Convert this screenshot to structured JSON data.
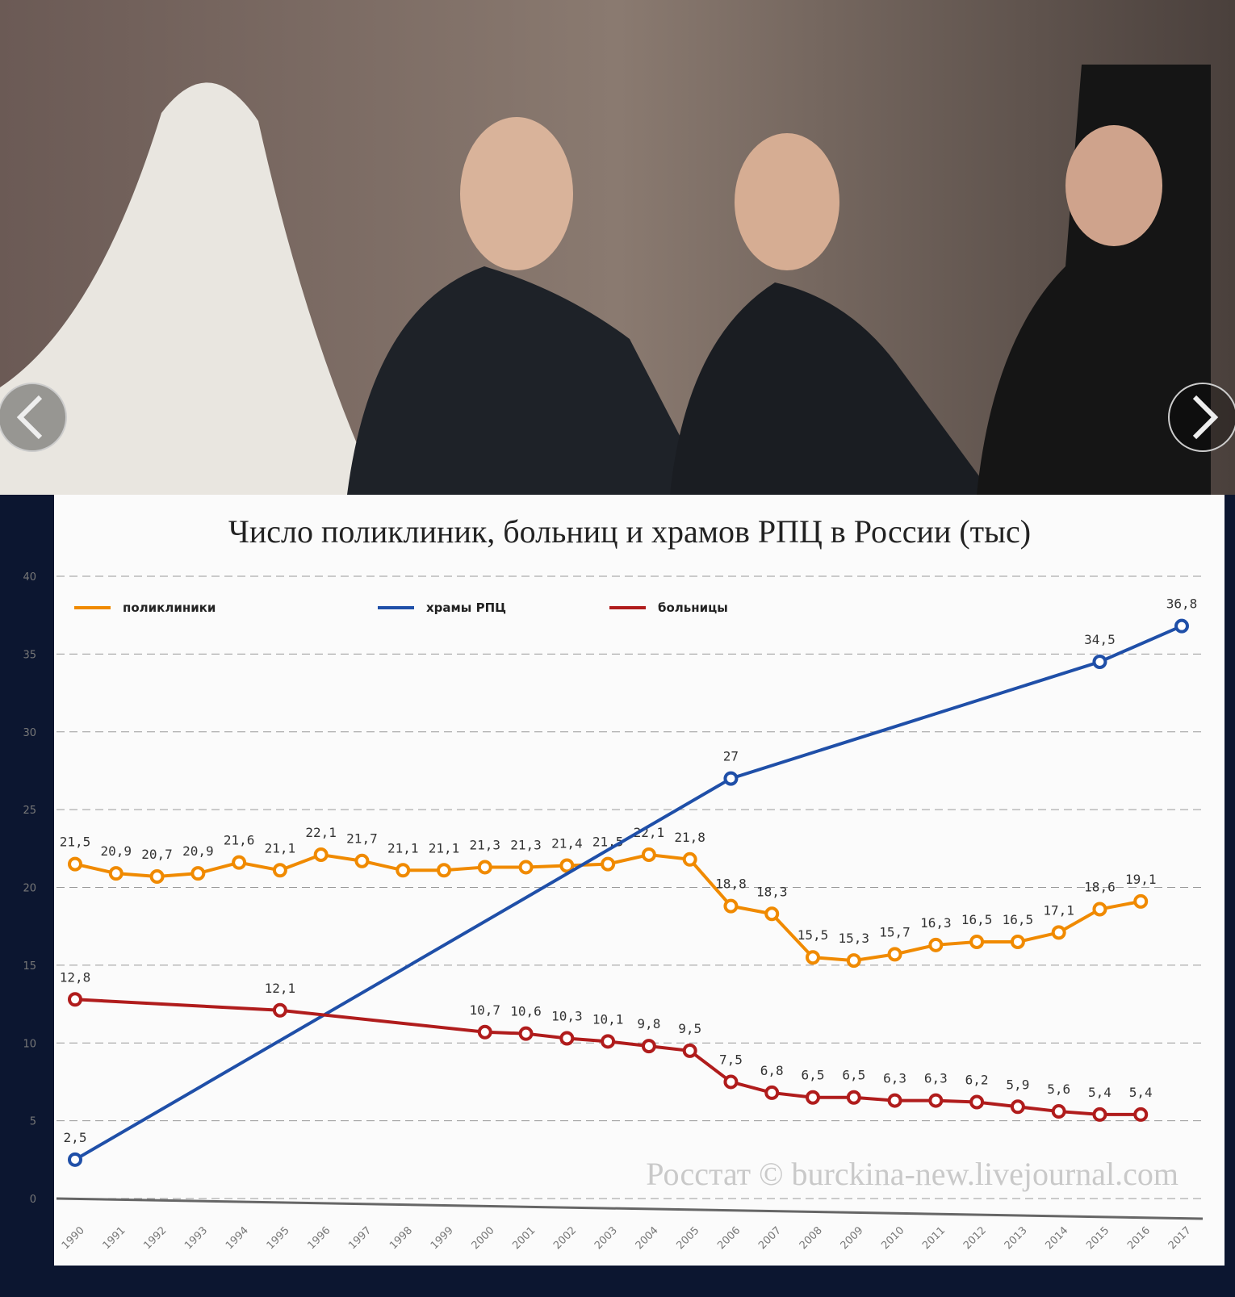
{
  "chart_data": {
    "type": "line",
    "title": "Число поликлиник, больниц и храмов РПЦ в России (тыс)",
    "source": "Росстат © burckina-new.livejournal.com",
    "xlim": [
      1990,
      2017
    ],
    "xticks": [
      1990,
      1991,
      1992,
      1993,
      1994,
      1995,
      1996,
      1997,
      1998,
      1999,
      2000,
      2001,
      2002,
      2003,
      2004,
      2005,
      2006,
      2007,
      2008,
      2009,
      2010,
      2011,
      2012,
      2013,
      2014,
      2015,
      2016,
      2017
    ],
    "ylim": [
      0,
      40
    ],
    "yticks": [
      0,
      5,
      10,
      15,
      20,
      25,
      30,
      35,
      40
    ],
    "grid": true,
    "series": [
      {
        "name": "поликлиники",
        "color": "#f08a00",
        "x": [
          1990,
          1991,
          1992,
          1993,
          1994,
          1995,
          1996,
          1997,
          1998,
          1999,
          2000,
          2001,
          2002,
          2003,
          2004,
          2005,
          2006,
          2007,
          2008,
          2009,
          2010,
          2011,
          2012,
          2013,
          2014,
          2015,
          2016
        ],
        "values": [
          21.5,
          20.9,
          20.7,
          20.9,
          21.6,
          21.1,
          22.1,
          21.7,
          21.1,
          21.1,
          21.3,
          21.3,
          21.4,
          21.5,
          22.1,
          21.8,
          18.8,
          18.3,
          15.5,
          15.3,
          15.7,
          16.3,
          16.5,
          16.5,
          17.1,
          18.6,
          19.1
        ],
        "value_labels": [
          "21,5",
          "20,9",
          "20,7",
          "20,9",
          "21,6",
          "21,1",
          "22,1",
          "21,7",
          "21,1",
          "21,1",
          "21,3",
          "21,3",
          "21,4",
          "21,5",
          "22,1",
          "21,8",
          "18,8",
          "18,3",
          "15,5",
          "15,3",
          "15,7",
          "16,3",
          "16,5",
          "16,5",
          "17,1",
          "18,6",
          "19,1"
        ]
      },
      {
        "name": "храмы РПЦ",
        "color": "#1f4fa8",
        "x": [
          1990,
          2006,
          2015,
          2017
        ],
        "values": [
          2.5,
          27,
          34.5,
          36.8
        ],
        "value_labels": [
          "2,5",
          "27",
          "34,5",
          "36,8"
        ]
      },
      {
        "name": "больницы",
        "color": "#b01c1c",
        "x": [
          1990,
          1995,
          2000,
          2001,
          2002,
          2003,
          2004,
          2005,
          2006,
          2007,
          2008,
          2009,
          2010,
          2011,
          2012,
          2013,
          2014,
          2015,
          2016
        ],
        "values": [
          12.8,
          12.1,
          10.7,
          10.6,
          10.3,
          10.1,
          9.8,
          9.5,
          7.5,
          6.8,
          6.5,
          6.5,
          6.3,
          6.3,
          6.2,
          5.9,
          5.6,
          5.4,
          5.4
        ],
        "value_labels": [
          "12,8",
          "12,1",
          "10,7",
          "10,6",
          "10,3",
          "10,1",
          "9,8",
          "9,5",
          "7,5",
          "6,8",
          "6,5",
          "6,5",
          "6,3",
          "6,3",
          "6,2",
          "5,9",
          "5,6",
          "5,4",
          "5,4"
        ]
      }
    ]
  }
}
